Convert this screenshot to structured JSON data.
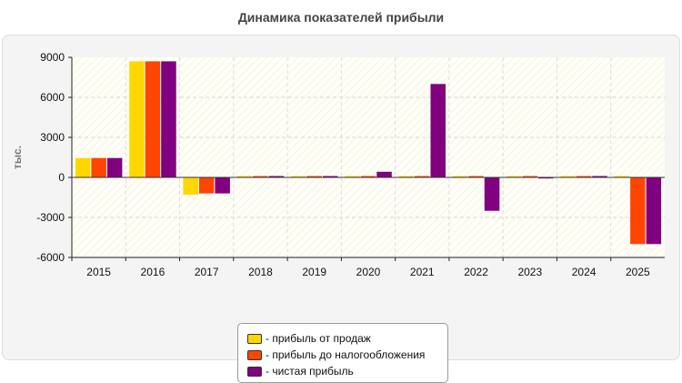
{
  "chart_data": {
    "type": "bar",
    "title": "Динамика показателей прибыли",
    "ylabel": "тыс.",
    "xlabel": "",
    "ylim": [
      -6000,
      9000
    ],
    "yticks": [
      -6000,
      -3000,
      0,
      3000,
      6000,
      9000
    ],
    "grid": true,
    "legend_position": "bottom",
    "categories": [
      "2015",
      "2016",
      "2017",
      "2018",
      "2019",
      "2020",
      "2021",
      "2022",
      "2023",
      "2024",
      "2025"
    ],
    "series": [
      {
        "name": "прибыль от продаж",
        "color": "#FFD700",
        "values": [
          1450,
          8700,
          -1300,
          100,
          100,
          100,
          100,
          100,
          100,
          100,
          100
        ]
      },
      {
        "name": "прибыль до налогообложения",
        "color": "#FF4500",
        "values": [
          1450,
          8700,
          -1200,
          100,
          100,
          100,
          100,
          100,
          100,
          100,
          -5000
        ]
      },
      {
        "name": "чистая прибыль",
        "color": "#800080",
        "values": [
          1450,
          8700,
          -1200,
          100,
          100,
          420,
          7000,
          -2500,
          -60,
          100,
          -5000
        ]
      }
    ]
  }
}
